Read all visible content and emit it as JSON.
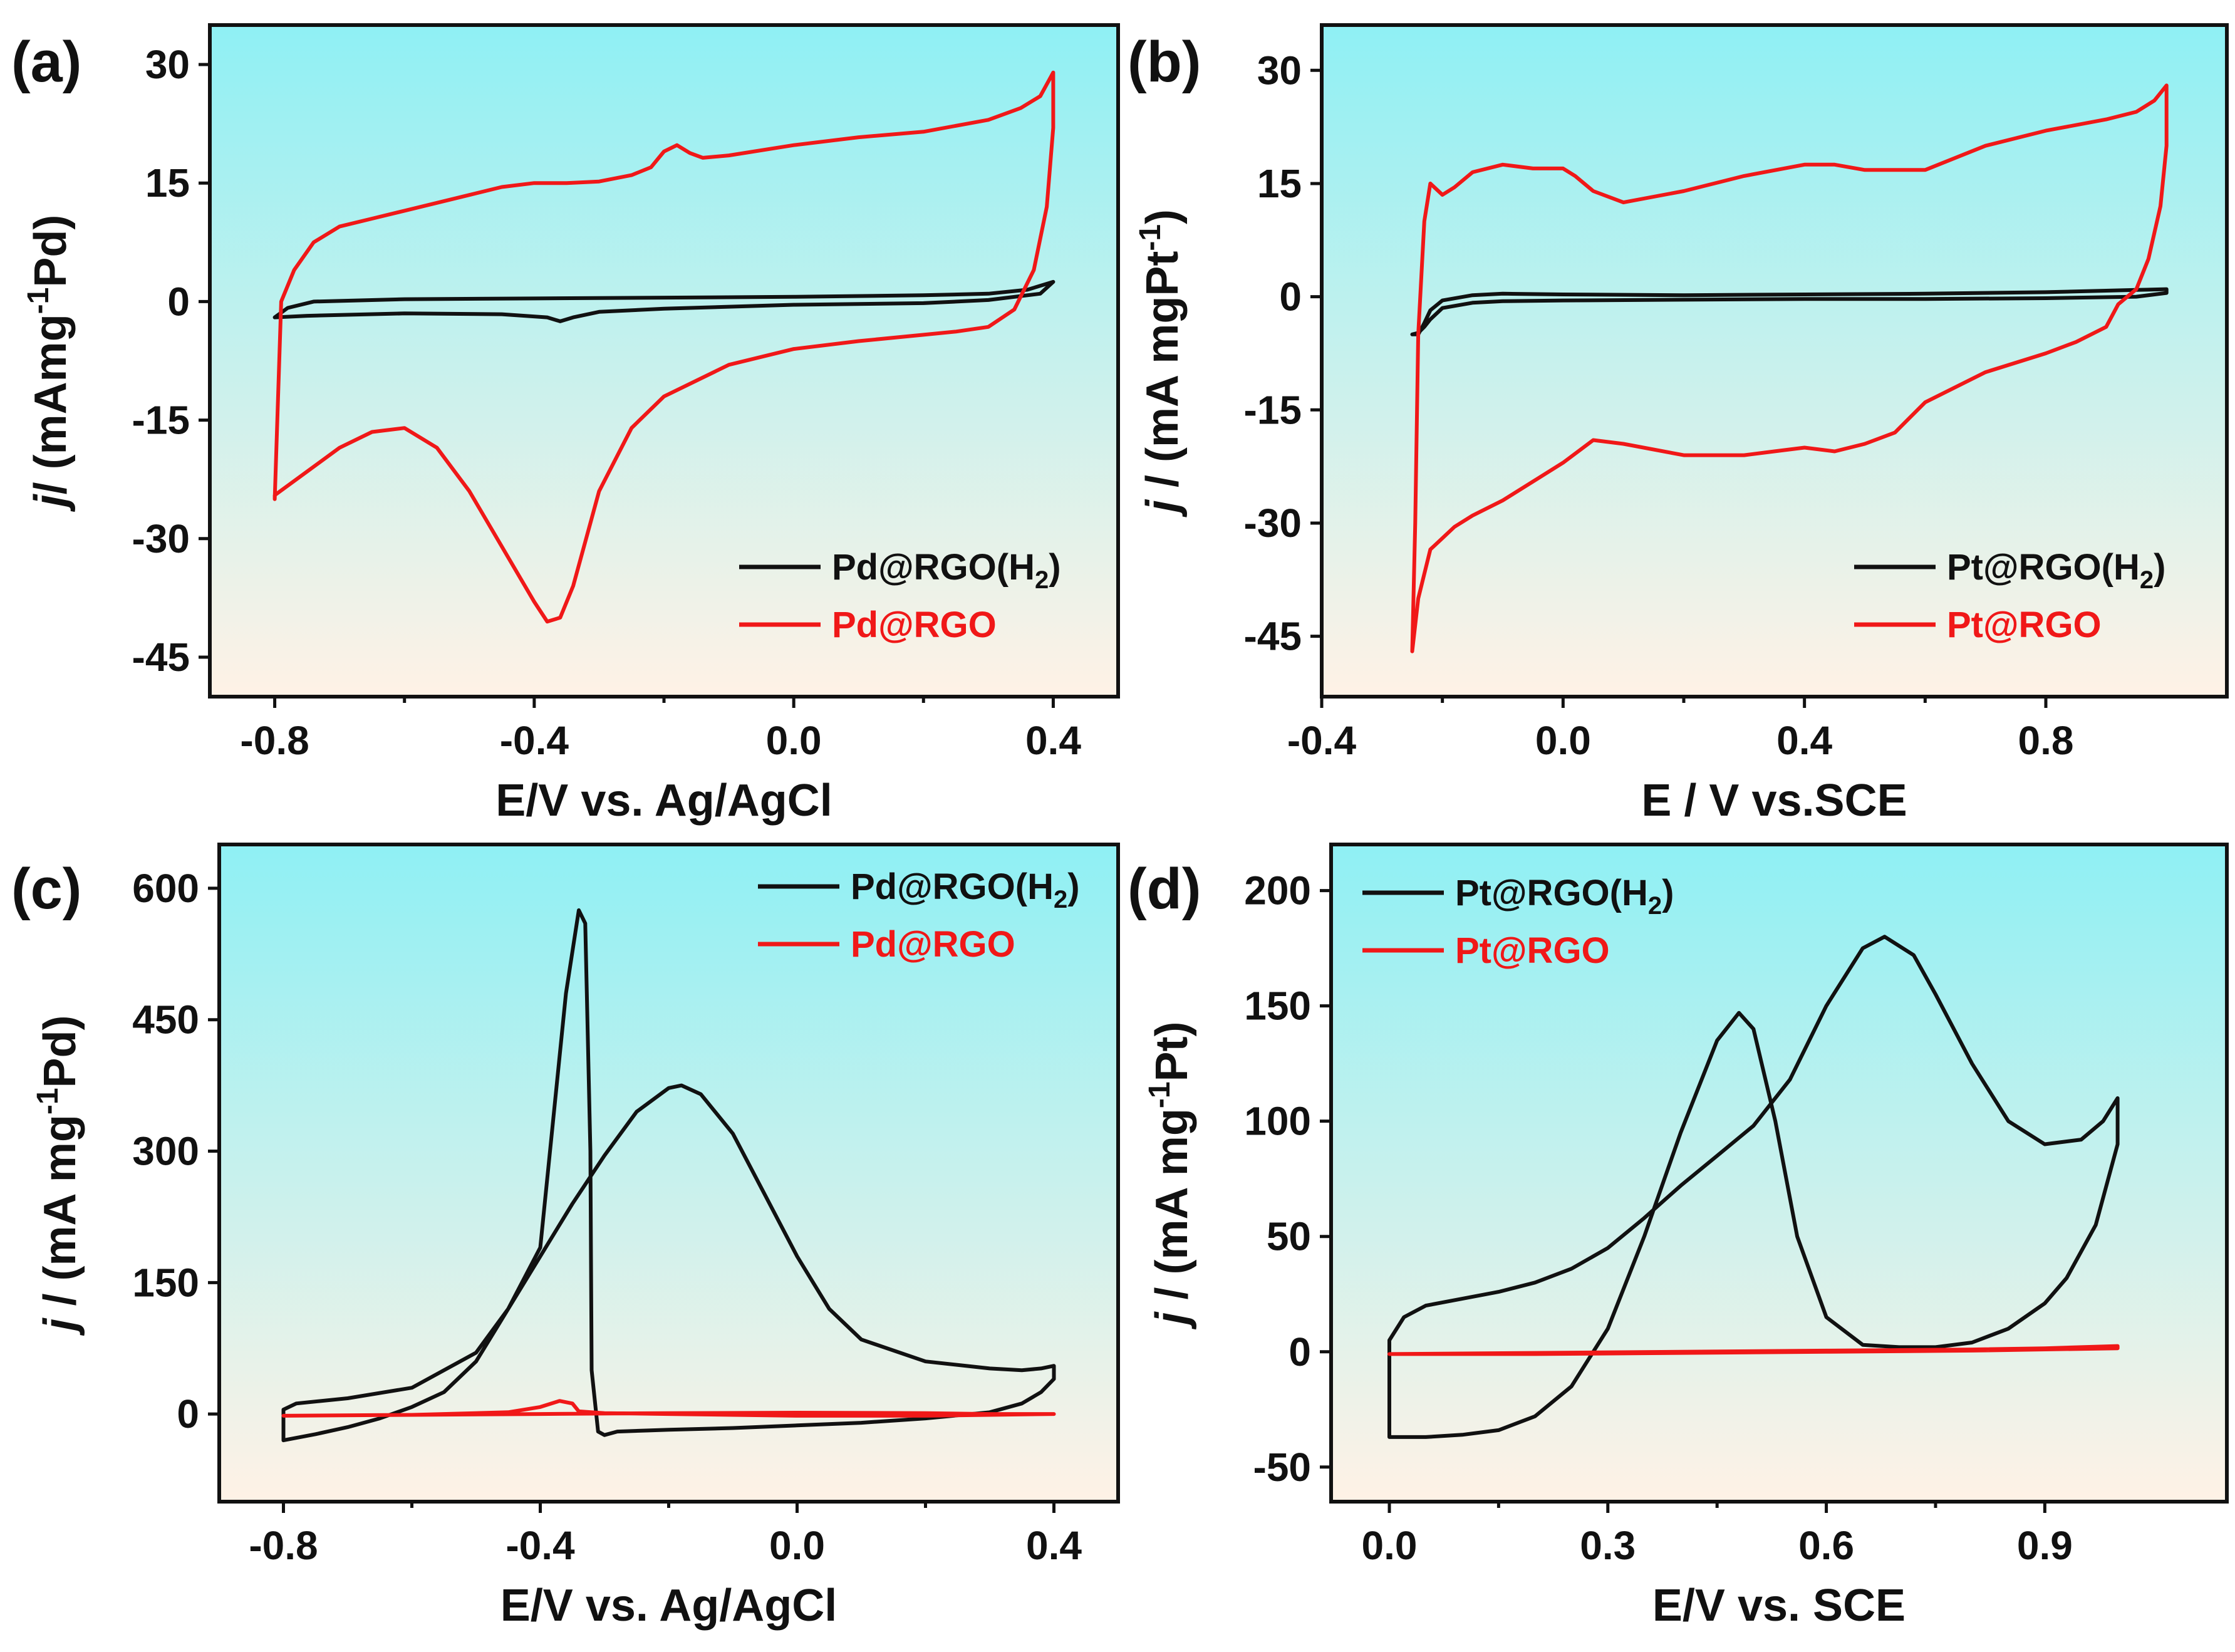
{
  "colors": {
    "series_black": "#111111",
    "series_red": "#f01818",
    "bg_top": "#8ff0f4",
    "bg_bottom": "#fff2e6"
  },
  "chart_data": [
    {
      "id": "a",
      "panel_label": "(a)",
      "type": "line",
      "xlabel": "E/V vs. Ag/AgCl",
      "ylabel": {
        "italic": "j",
        "main": "/ (mAmg",
        "sup": "-1",
        "tail": "Pd)"
      },
      "xlim": [
        -0.9,
        0.5
      ],
      "ylim": [
        -50,
        35
      ],
      "xticks": [
        -0.8,
        -0.4,
        0.0,
        0.4
      ],
      "xtick_labels": [
        "-0.8",
        "-0.4",
        "0.0",
        "0.4"
      ],
      "yticks": [
        30,
        15,
        0,
        -15,
        -30,
        -45
      ],
      "ytick_labels": [
        "30",
        "15",
        "0",
        "-15",
        "-30",
        "-45"
      ],
      "legend_position": "bottom-right",
      "series": [
        {
          "name": "Pd@RGO(H2)",
          "label_main": "Pd@RGO(H",
          "label_sub": "2",
          "label_tail": ")",
          "color": "#111111",
          "x": [
            -0.8,
            -0.78,
            -0.74,
            -0.6,
            -0.4,
            -0.2,
            0.0,
            0.2,
            0.3,
            0.36,
            0.4,
            0.38,
            0.3,
            0.2,
            0.0,
            -0.2,
            -0.3,
            -0.34,
            -0.36,
            -0.38,
            -0.45,
            -0.6,
            -0.75,
            -0.8
          ],
          "y": [
            -2.0,
            -0.8,
            0.0,
            0.3,
            0.4,
            0.5,
            0.6,
            0.8,
            1.0,
            1.5,
            2.5,
            1.0,
            0.2,
            -0.2,
            -0.4,
            -0.9,
            -1.3,
            -2.0,
            -2.5,
            -2.0,
            -1.6,
            -1.5,
            -1.8,
            -2.0
          ]
        },
        {
          "name": "Pd@RGO",
          "label_main": "Pd@RGO",
          "label_sub": "",
          "label_tail": "",
          "color": "#f01818",
          "x": [
            -0.8,
            -0.79,
            -0.77,
            -0.74,
            -0.7,
            -0.65,
            -0.6,
            -0.55,
            -0.5,
            -0.45,
            -0.4,
            -0.35,
            -0.3,
            -0.25,
            -0.22,
            -0.2,
            -0.18,
            -0.16,
            -0.14,
            -0.1,
            0.0,
            0.1,
            0.2,
            0.3,
            0.35,
            0.38,
            0.39,
            0.4,
            0.4,
            0.39,
            0.37,
            0.34,
            0.3,
            0.25,
            0.2,
            0.1,
            0.0,
            -0.1,
            -0.2,
            -0.25,
            -0.3,
            -0.32,
            -0.34,
            -0.36,
            -0.38,
            -0.4,
            -0.45,
            -0.5,
            -0.55,
            -0.6,
            -0.65,
            -0.7,
            -0.75,
            -0.8,
            -0.8
          ],
          "y": [
            -25.0,
            0.0,
            4.0,
            7.5,
            9.5,
            10.5,
            11.5,
            12.5,
            13.5,
            14.5,
            15.0,
            15.0,
            15.2,
            16.0,
            17.0,
            19.0,
            19.8,
            18.8,
            18.2,
            18.5,
            19.8,
            20.8,
            21.5,
            23.0,
            24.5,
            26.0,
            27.5,
            29.0,
            22.0,
            12.0,
            4.0,
            -1.0,
            -3.2,
            -3.8,
            -4.2,
            -5.0,
            -6.0,
            -8.0,
            -12.0,
            -16.0,
            -24.0,
            -30.0,
            -36.0,
            -40.0,
            -40.5,
            -38.0,
            -31.0,
            -24.0,
            -18.5,
            -16.0,
            -16.5,
            -18.5,
            -21.5,
            -24.5,
            -25.0
          ]
        }
      ]
    },
    {
      "id": "b",
      "panel_label": "(b)",
      "type": "line",
      "xlabel": "E / V vs.SCE",
      "ylabel": {
        "italic": "j",
        "main": " / (mA mgPt",
        "sup": "-1",
        "tail": ")"
      },
      "xlim": [
        -0.4,
        1.1
      ],
      "ylim": [
        -53,
        36
      ],
      "xticks": [
        -0.4,
        0.0,
        0.4,
        0.8
      ],
      "xtick_labels": [
        "-0.4",
        "0.0",
        "0.4",
        "0.8"
      ],
      "yticks": [
        30,
        15,
        0,
        -15,
        -30,
        -45
      ],
      "ytick_labels": [
        "30",
        "15",
        "0",
        "-15",
        "-30",
        "-45"
      ],
      "legend_position": "bottom-right",
      "series": [
        {
          "name": "Pt@RGO(H2)",
          "label_main": "Pt@RGO(H",
          "label_sub": "2",
          "label_tail": ")",
          "color": "#111111",
          "x": [
            -0.25,
            -0.24,
            -0.23,
            -0.22,
            -0.2,
            -0.15,
            -0.1,
            0.0,
            0.2,
            0.4,
            0.6,
            0.8,
            0.9,
            0.95,
            1.0,
            1.0,
            0.95,
            0.8,
            0.6,
            0.4,
            0.2,
            0.0,
            -0.1,
            -0.15,
            -0.2,
            -0.22,
            -0.23,
            -0.24,
            -0.25
          ],
          "y": [
            -5.0,
            -5.0,
            -3.5,
            -1.8,
            -0.5,
            0.2,
            0.4,
            0.3,
            0.2,
            0.3,
            0.4,
            0.6,
            0.8,
            0.9,
            1.0,
            0.5,
            0.0,
            -0.2,
            -0.3,
            -0.3,
            -0.4,
            -0.5,
            -0.6,
            -0.8,
            -1.5,
            -3.0,
            -4.0,
            -4.8,
            -5.0
          ]
        },
        {
          "name": "Pt@RGO",
          "label_main": "Pt@RGO",
          "label_sub": "",
          "label_tail": "",
          "color": "#f01818",
          "x": [
            -0.25,
            -0.245,
            -0.24,
            -0.23,
            -0.22,
            -0.2,
            -0.18,
            -0.15,
            -0.1,
            -0.05,
            0.0,
            0.02,
            0.05,
            0.1,
            0.2,
            0.3,
            0.4,
            0.45,
            0.5,
            0.6,
            0.7,
            0.8,
            0.9,
            0.95,
            0.98,
            1.0,
            1.0,
            0.99,
            0.97,
            0.95,
            0.92,
            0.9,
            0.85,
            0.8,
            0.7,
            0.6,
            0.55,
            0.5,
            0.45,
            0.4,
            0.35,
            0.3,
            0.2,
            0.1,
            0.05,
            0.0,
            -0.05,
            -0.1,
            -0.15,
            -0.18,
            -0.2,
            -0.22,
            -0.24,
            -0.25
          ],
          "y": [
            -47.0,
            -30.0,
            -5.0,
            10.0,
            15.0,
            13.5,
            14.5,
            16.5,
            17.5,
            17.0,
            17.0,
            16.0,
            14.0,
            12.5,
            14.0,
            16.0,
            17.5,
            17.5,
            16.8,
            16.8,
            20.0,
            22.0,
            23.5,
            24.5,
            26.0,
            28.0,
            20.0,
            12.0,
            5.0,
            1.0,
            -1.0,
            -4.0,
            -6.0,
            -7.5,
            -10.0,
            -14.0,
            -18.0,
            -19.5,
            -20.5,
            -20.0,
            -20.5,
            -21.0,
            -21.0,
            -19.5,
            -19.0,
            -22.0,
            -24.5,
            -27.0,
            -29.0,
            -30.5,
            -32.0,
            -33.5,
            -40.0,
            -47.0
          ]
        }
      ]
    },
    {
      "id": "c",
      "panel_label": "(c)",
      "type": "line",
      "xlabel": "E/V vs. Ag/AgCl",
      "ylabel": {
        "italic": "j",
        "main": " / (mA mg",
        "sup": "-1",
        "tail": "Pd)"
      },
      "xlim": [
        -0.9,
        0.5
      ],
      "ylim": [
        -100,
        650
      ],
      "xticks": [
        -0.8,
        -0.4,
        0.0,
        0.4
      ],
      "xtick_labels": [
        "-0.8",
        "-0.4",
        "0.0",
        "0.4"
      ],
      "yticks": [
        600,
        450,
        300,
        150,
        0
      ],
      "ytick_labels": [
        "600",
        "450",
        "300",
        "150",
        "0"
      ],
      "legend_position": "top-right",
      "series": [
        {
          "name": "Pd@RGO(H2)",
          "label_main": "Pd@RGO(H",
          "label_sub": "2",
          "label_tail": ")",
          "color": "#111111",
          "x": [
            -0.8,
            -0.8,
            -0.78,
            -0.7,
            -0.6,
            -0.5,
            -0.45,
            -0.4,
            -0.35,
            -0.3,
            -0.25,
            -0.2,
            -0.18,
            -0.15,
            -0.1,
            -0.05,
            0.0,
            0.05,
            0.1,
            0.2,
            0.3,
            0.35,
            0.38,
            0.4,
            0.4,
            0.38,
            0.35,
            0.3,
            0.2,
            0.1,
            0.0,
            -0.1,
            -0.2,
            -0.28,
            -0.3,
            -0.31,
            -0.32,
            -0.322,
            -0.33,
            -0.34,
            -0.36,
            -0.4,
            -0.45,
            -0.5,
            -0.55,
            -0.6,
            -0.65,
            -0.7,
            -0.75,
            -0.8
          ],
          "y": [
            -30.0,
            5.0,
            12.0,
            18.0,
            30.0,
            70.0,
            120.0,
            180.0,
            240.0,
            295.0,
            345.0,
            372.0,
            375.0,
            365.0,
            320.0,
            250.0,
            180.0,
            120.0,
            85.0,
            60.0,
            52.0,
            50.0,
            52.0,
            55.0,
            40.0,
            25.0,
            12.0,
            2.0,
            -5.0,
            -10.0,
            -13.0,
            -16.0,
            -18.0,
            -20.0,
            -24.0,
            -20.0,
            50.0,
            300.0,
            560.0,
            575.0,
            480.0,
            190.0,
            120.0,
            60.0,
            25.0,
            8.0,
            -5.0,
            -15.0,
            -23.0,
            -30.0
          ]
        },
        {
          "name": "Pd@RGO",
          "label_main": "Pd@RGO",
          "label_sub": "",
          "label_tail": "",
          "color": "#f01818",
          "x": [
            -0.8,
            -0.6,
            -0.45,
            -0.4,
            -0.37,
            -0.35,
            -0.34,
            -0.3,
            -0.2,
            0.0,
            0.2,
            0.3,
            0.4,
            0.4,
            0.3,
            0.2,
            0.0,
            -0.2,
            -0.4,
            -0.6,
            -0.8
          ],
          "y": [
            -2.0,
            -1.0,
            2.0,
            8.0,
            15.0,
            12.0,
            3.0,
            1.0,
            0.0,
            -2.0,
            -2.0,
            -1.0,
            0.0,
            0.0,
            0.0,
            1.0,
            1.5,
            1.0,
            0.0,
            -1.0,
            -2.0
          ]
        }
      ]
    },
    {
      "id": "d",
      "panel_label": "(d)",
      "type": "line",
      "xlabel": "E/V vs. SCE",
      "ylabel": {
        "italic": "j",
        "main": " / (mA mg",
        "sup": "-1",
        "tail": "Pt)"
      },
      "xlim": [
        -0.08,
        1.15
      ],
      "ylim": [
        -65,
        220
      ],
      "xticks": [
        0.0,
        0.3,
        0.6,
        0.9
      ],
      "xtick_labels": [
        "0.0",
        "0.3",
        "0.6",
        "0.9"
      ],
      "yticks": [
        200,
        150,
        100,
        50,
        0,
        -50
      ],
      "ytick_labels": [
        "200",
        "150",
        "100",
        "50",
        "0",
        "-50"
      ],
      "legend_position": "top-left",
      "series": [
        {
          "name": "Pt@RGO(H2)",
          "label_main": "Pt@RGO(H",
          "label_sub": "2",
          "label_tail": ")",
          "color": "#111111",
          "x": [
            0.0,
            0.0,
            0.02,
            0.05,
            0.1,
            0.15,
            0.2,
            0.25,
            0.3,
            0.35,
            0.4,
            0.45,
            0.5,
            0.55,
            0.6,
            0.65,
            0.68,
            0.72,
            0.75,
            0.8,
            0.85,
            0.9,
            0.95,
            0.98,
            1.0,
            1.0,
            0.97,
            0.93,
            0.9,
            0.85,
            0.8,
            0.75,
            0.7,
            0.65,
            0.6,
            0.56,
            0.53,
            0.5,
            0.48,
            0.45,
            0.4,
            0.35,
            0.3,
            0.25,
            0.2,
            0.15,
            0.1,
            0.05,
            0.0
          ],
          "y": [
            -37.0,
            5.0,
            15.0,
            20.0,
            23.0,
            26.0,
            30.0,
            36.0,
            45.0,
            58.0,
            72.0,
            85.0,
            98.0,
            118.0,
            150.0,
            175.0,
            180.0,
            172.0,
            155.0,
            125.0,
            100.0,
            90.0,
            92.0,
            100.0,
            110.0,
            90.0,
            55.0,
            32.0,
            21.0,
            10.0,
            4.0,
            2.0,
            2.0,
            3.0,
            15.0,
            50.0,
            100.0,
            140.0,
            147.0,
            135.0,
            95.0,
            50.0,
            10.0,
            -15.0,
            -28.0,
            -34.0,
            -36.0,
            -37.0,
            -37.0
          ]
        },
        {
          "name": "Pt@RGO",
          "label_main": "Pt@RGO",
          "label_sub": "",
          "label_tail": "",
          "color": "#f01818",
          "x": [
            0.0,
            0.2,
            0.4,
            0.6,
            0.8,
            0.9,
            1.0,
            1.0,
            0.8,
            0.6,
            0.4,
            0.2,
            0.0
          ],
          "y": [
            -1.0,
            -0.5,
            0.0,
            0.5,
            1.0,
            1.5,
            2.5,
            1.5,
            0.5,
            0.0,
            -0.5,
            -1.0,
            -1.0
          ]
        }
      ]
    }
  ]
}
